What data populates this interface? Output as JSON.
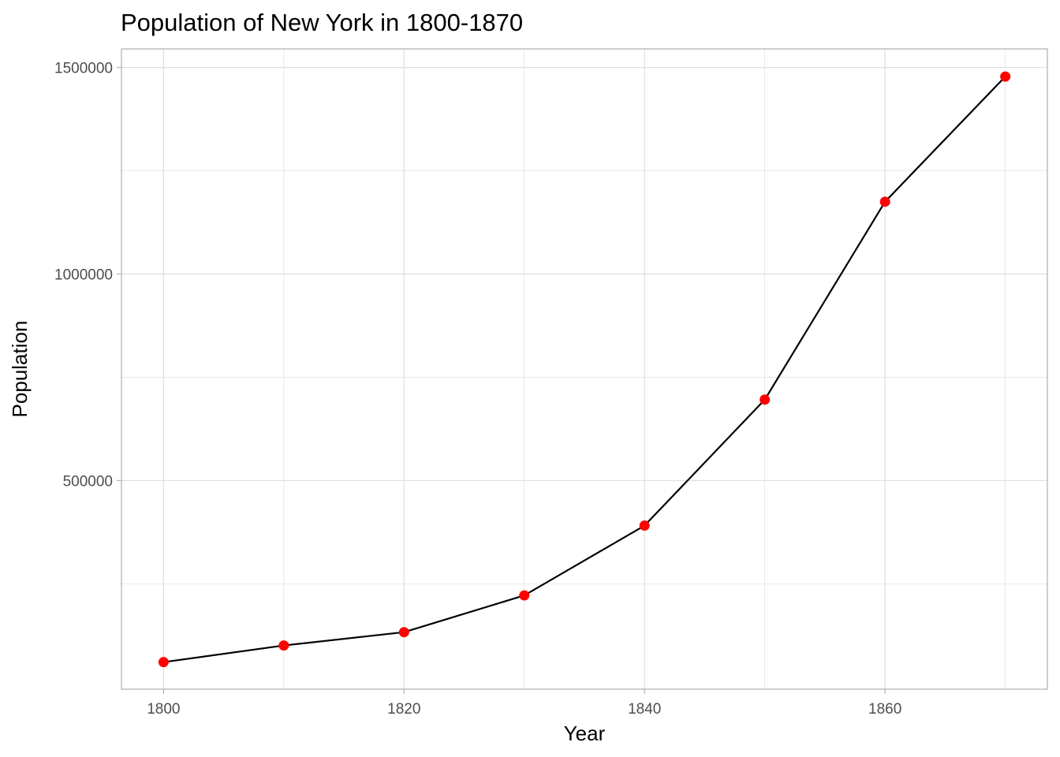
{
  "chart_data": {
    "type": "line",
    "title": "Population of New York in 1800-1870",
    "xlabel": "Year",
    "ylabel": "Population",
    "x": [
      1800,
      1810,
      1820,
      1830,
      1840,
      1850,
      1860,
      1870
    ],
    "series": [
      {
        "values": [
          60515,
          100775,
          133000,
          222000,
          391000,
          696000,
          1175000,
          1478000
        ]
      }
    ],
    "xlim": [
      1796.5,
      1873.5
    ],
    "ylim": [
      -5000,
      1545000
    ],
    "x_ticks": [
      1800,
      1820,
      1840,
      1860
    ],
    "x_tick_labels": [
      "1800",
      "1820",
      "1840",
      "1860"
    ],
    "y_ticks": [
      500000,
      1000000,
      1500000
    ],
    "y_tick_labels": [
      "500000",
      "1000000",
      "1500000"
    ],
    "grid": true,
    "colors": {
      "line": "#000000",
      "points": "#ff0000",
      "grid": "#dedede",
      "panel_border": "#b3b3b3",
      "tick_label": "#4d4d4d"
    }
  }
}
